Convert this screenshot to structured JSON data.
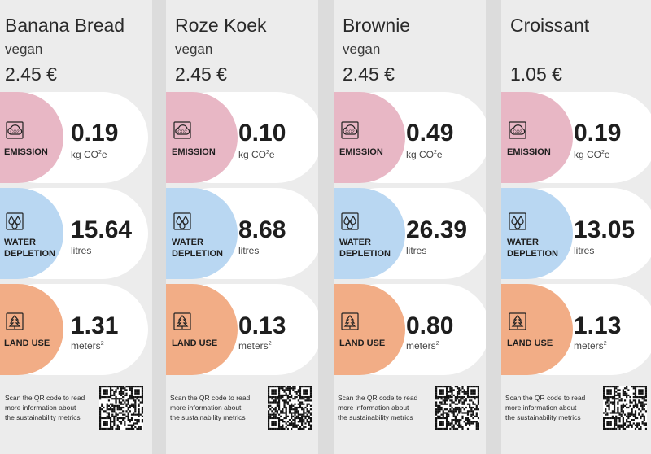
{
  "colors": {
    "emission": "#e8b7c5",
    "water": "#b9d7f2",
    "land": "#f2ad86"
  },
  "icons": {
    "emission": "co2-cloud-icon",
    "water": "water-drops-icon",
    "land": "tree-icon",
    "qr": "qr-code-icon"
  },
  "labels": {
    "emission": "EMISSION",
    "water_1": "WATER",
    "water_2": "DEPLETION",
    "land": "LAND USE",
    "co2_icon_text": "CO2"
  },
  "footer_lines": [
    "Scan the QR code to read",
    "more information about",
    "the sustainability metrics"
  ],
  "products": [
    {
      "name": "Banana Bread",
      "diet": "vegan",
      "price": "2.45 €",
      "emission_value": "0.19",
      "emission_unit": "kg CO",
      "emission_unit_sup": "2",
      "emission_unit_tail": "e",
      "water_value": "15.64",
      "water_unit": "litres",
      "land_value": "1.31",
      "land_unit": "meters",
      "land_unit_sup": "2"
    },
    {
      "name": "Roze Koek",
      "diet": "vegan",
      "price": "2.45 €",
      "emission_value": "0.10",
      "emission_unit": "kg CO",
      "emission_unit_sup": "2",
      "emission_unit_tail": "e",
      "water_value": "8.68",
      "water_unit": "litres",
      "land_value": "0.13",
      "land_unit": "meters",
      "land_unit_sup": "2"
    },
    {
      "name": "Brownie",
      "diet": "vegan",
      "price": "2.45 €",
      "emission_value": "0.49",
      "emission_unit": "kg CO",
      "emission_unit_sup": "2",
      "emission_unit_tail": "e",
      "water_value": "26.39",
      "water_unit": "litres",
      "land_value": "0.80",
      "land_unit": "meters",
      "land_unit_sup": "2"
    },
    {
      "name": "Croissant",
      "diet": "",
      "price": "1.05 €",
      "emission_value": "0.19",
      "emission_unit": "kg CO",
      "emission_unit_sup": "2",
      "emission_unit_tail": "e",
      "water_value": "13.05",
      "water_unit": "litres",
      "land_value": "1.13",
      "land_unit": "meters",
      "land_unit_sup": "2"
    }
  ]
}
